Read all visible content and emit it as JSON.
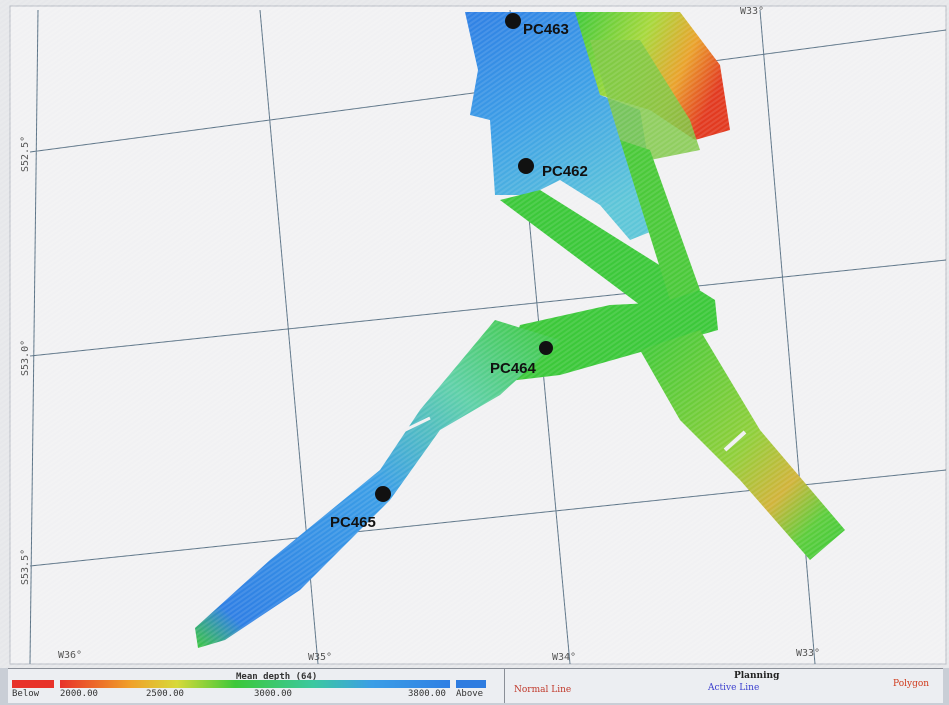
{
  "stations": [
    {
      "name": "PC463"
    },
    {
      "name": "PC462"
    },
    {
      "name": "PC464"
    },
    {
      "name": "PC465"
    }
  ],
  "coordinates": {
    "top_right": "W33°",
    "left_upper": "S52.5°",
    "left_middle": "S53.0°",
    "left_lower": "S53.5°",
    "bottom": [
      "W36°",
      "W35°",
      "W34°",
      "W33°"
    ]
  },
  "legend": {
    "title": "Mean depth (64)",
    "below_label": "Below",
    "above_label": "Above",
    "ticks": [
      "2000.00",
      "2500.00",
      "3000.00",
      "3800.00"
    ],
    "colors": {
      "below": "#e8322a",
      "above": "#2e7ce0",
      "shallow": "#e8322a",
      "mid": "#3cc83a",
      "deep": "#2f7fe4"
    }
  },
  "planning": {
    "title": "Planning",
    "normal_line": "Normal Line",
    "active_line": "Active Line",
    "polygon": "Polygon",
    "colors": {
      "normal": "#c0392b",
      "active": "#3b3fcf",
      "polygon": "#d0391a"
    }
  }
}
